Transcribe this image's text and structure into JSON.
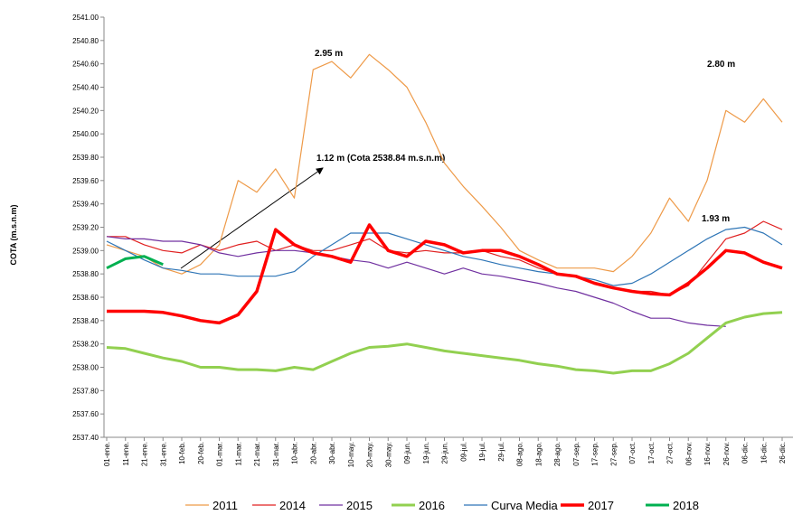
{
  "chart_data": {
    "type": "line",
    "y_label": "COTA (m.s.n.m)",
    "categories": [
      "01-ene.",
      "11-ene.",
      "21-ene.",
      "31-ene.",
      "10-feb.",
      "20-feb.",
      "01-mar.",
      "11-mar.",
      "21-mar.",
      "31-mar.",
      "10-abr.",
      "20-abr.",
      "30-abr.",
      "10-may.",
      "20-may.",
      "30-may.",
      "09-jun.",
      "19-jun.",
      "29-jun.",
      "09-jul.",
      "19-jul.",
      "29-jul.",
      "08-ago.",
      "18-ago.",
      "28-ago.",
      "07-sep.",
      "17-sep.",
      "27-sep.",
      "07-oct.",
      "17-oct.",
      "27-oct.",
      "06-nov.",
      "16-nov.",
      "26-nov.",
      "06-dic.",
      "16-dic.",
      "26-dic."
    ],
    "ylim": [
      2537.4,
      2541.0
    ],
    "yticks": [
      {
        "value": 2537.4,
        "label": "2537.40"
      },
      {
        "value": 2537.6,
        "label": "2537.60"
      },
      {
        "value": 2537.8,
        "label": "2537.80"
      },
      {
        "value": 2538.0,
        "label": "2538.00"
      },
      {
        "value": 2538.2,
        "label": "2538.20"
      },
      {
        "value": 2538.4,
        "label": "2538.40"
      },
      {
        "value": 2538.6,
        "label": "2538.60"
      },
      {
        "value": 2538.8,
        "label": "2538.80"
      },
      {
        "value": 2539.0,
        "label": "2539.00"
      },
      {
        "value": 2539.2,
        "label": "2539.20"
      },
      {
        "value": 2539.4,
        "label": "2539.40"
      },
      {
        "value": 2539.6,
        "label": "2539.60"
      },
      {
        "value": 2539.8,
        "label": "2539.80"
      },
      {
        "value": 2540.0,
        "label": "2540.00"
      },
      {
        "value": 2540.2,
        "label": "2540.20"
      },
      {
        "value": 2540.4,
        "label": "2540.40"
      },
      {
        "value": 2540.6,
        "label": "2540.60"
      },
      {
        "value": 2540.8,
        "label": "2540.80"
      },
      {
        "value": 2541.0,
        "label": "2541.00"
      }
    ],
    "grid": false,
    "legend": "bottom",
    "series": [
      {
        "name": "2011",
        "color": "#ee9a48",
        "line_width": 1.2,
        "values": [
          2539.05,
          2539.0,
          2538.95,
          2538.85,
          2538.8,
          2538.88,
          2539.05,
          2539.6,
          2539.5,
          2539.7,
          2539.45,
          2540.55,
          2540.62,
          2540.48,
          2540.68,
          2540.55,
          2540.4,
          2540.1,
          2539.75,
          2539.55,
          2539.38,
          2539.2,
          2539.0,
          2538.92,
          2538.85,
          2538.85,
          2538.85,
          2538.82,
          2538.95,
          2539.15,
          2539.45,
          2539.25,
          2539.6,
          2540.2,
          2540.1,
          2540.3,
          2540.1
        ]
      },
      {
        "name": "2014",
        "color": "#e02020",
        "line_width": 1.2,
        "values": [
          2539.12,
          2539.12,
          2539.05,
          2539.0,
          2538.98,
          2539.05,
          2539.0,
          2539.05,
          2539.08,
          2539.0,
          2539.05,
          2539.0,
          2539.0,
          2539.05,
          2539.1,
          2539.0,
          2538.98,
          2539.0,
          2538.98,
          2538.98,
          2539.0,
          2538.95,
          2538.92,
          2538.85,
          2538.8,
          2538.78,
          2538.72,
          2538.68,
          2538.65,
          2538.65,
          2538.62,
          2538.7,
          2538.9,
          2539.1,
          2539.15,
          2539.25,
          2539.18
        ]
      },
      {
        "name": "2015",
        "color": "#7030a0",
        "line_width": 1.2,
        "values": [
          2539.12,
          2539.1,
          2539.1,
          2539.08,
          2539.08,
          2539.05,
          2538.98,
          2538.95,
          2538.98,
          2539.0,
          2539.0,
          2538.98,
          2538.95,
          2538.92,
          2538.9,
          2538.85,
          2538.9,
          2538.85,
          2538.8,
          2538.85,
          2538.8,
          2538.78,
          2538.75,
          2538.72,
          2538.68,
          2538.65,
          2538.6,
          2538.55,
          2538.48,
          2538.42,
          2538.42,
          2538.38,
          2538.36,
          2538.35,
          null,
          null,
          null
        ]
      },
      {
        "name": "2016",
        "color": "#92d050",
        "line_width": 3,
        "values": [
          2538.17,
          2538.16,
          2538.12,
          2538.08,
          2538.05,
          2538.0,
          2538.0,
          2537.98,
          2537.98,
          2537.97,
          2538.0,
          2537.98,
          2538.05,
          2538.12,
          2538.17,
          2538.18,
          2538.2,
          2538.17,
          2538.14,
          2538.12,
          2538.1,
          2538.08,
          2538.06,
          2538.03,
          2538.01,
          2537.98,
          2537.97,
          2537.95,
          2537.97,
          2537.97,
          2538.03,
          2538.12,
          2538.25,
          2538.38,
          2538.43,
          2538.46,
          2538.47
        ]
      },
      {
        "name": "Curva Media",
        "color": "#2e75b6",
        "line_width": 1.2,
        "values": [
          2539.08,
          2539.0,
          2538.92,
          2538.85,
          2538.83,
          2538.8,
          2538.8,
          2538.78,
          2538.78,
          2538.78,
          2538.82,
          2538.95,
          2539.05,
          2539.15,
          2539.15,
          2539.15,
          2539.1,
          2539.05,
          2539.0,
          2538.95,
          2538.92,
          2538.88,
          2538.85,
          2538.82,
          2538.8,
          2538.78,
          2538.75,
          2538.7,
          2538.72,
          2538.8,
          2538.9,
          2539.0,
          2539.1,
          2539.18,
          2539.2,
          2539.15,
          2539.05
        ]
      },
      {
        "name": "2017",
        "color": "#ff0000",
        "line_width": 3.5,
        "values": [
          2538.48,
          2538.48,
          2538.48,
          2538.47,
          2538.44,
          2538.4,
          2538.38,
          2538.45,
          2538.65,
          2539.18,
          2539.05,
          2538.98,
          2538.95,
          2538.9,
          2539.22,
          2539.0,
          2538.95,
          2539.08,
          2539.05,
          2538.98,
          2539.0,
          2539.0,
          2538.95,
          2538.88,
          2538.8,
          2538.78,
          2538.72,
          2538.68,
          2538.65,
          2538.63,
          2538.62,
          2538.72,
          2538.85,
          2539.0,
          2538.98,
          2538.9,
          2538.85
        ]
      },
      {
        "name": "2018",
        "color": "#00b050",
        "line_width": 3,
        "values": [
          2538.85,
          2538.93,
          2538.95,
          2538.88,
          null,
          null,
          null,
          null,
          null,
          null,
          null,
          null,
          null,
          null,
          null,
          null,
          null,
          null,
          null,
          null,
          null,
          null,
          null,
          null,
          null,
          null,
          null,
          null,
          null,
          null,
          null,
          null,
          null,
          null,
          null,
          null,
          null
        ]
      }
    ],
    "annotations": [
      "2.95 m",
      "2.80 m",
      "1.93 m",
      "1.12 m (Cota 2538.84 m.s.n.m)"
    ]
  }
}
